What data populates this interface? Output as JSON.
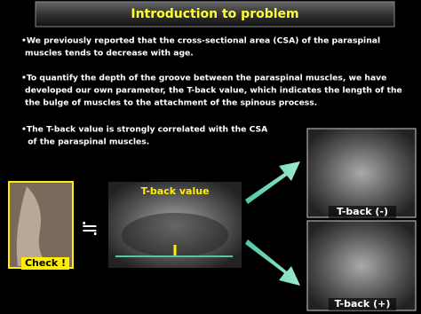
{
  "header": {
    "title": "Introduction to problem"
  },
  "bullets": [
    [
      "•We previously reported that the cross-sectional area (CSA) of the paraspinal",
      "muscles tends to decrease with age."
    ],
    [
      "•To quantify the depth of the groove between the paraspinal muscles, we have",
      "developed our own parameter, the T-back value, which indicates the length of the",
      "the bulge of muscles to the attachment of the spinous process."
    ],
    [
      "•The T-back value is strongly correlated with the CSA",
      " of the paraspinal muscles."
    ]
  ],
  "figures": {
    "check_label": "Check !",
    "approx_symbol": "≒",
    "tback_value_label": "T-back value",
    "tback_minus_label": "T-back (-)",
    "tback_plus_label": "T-back (+)"
  }
}
